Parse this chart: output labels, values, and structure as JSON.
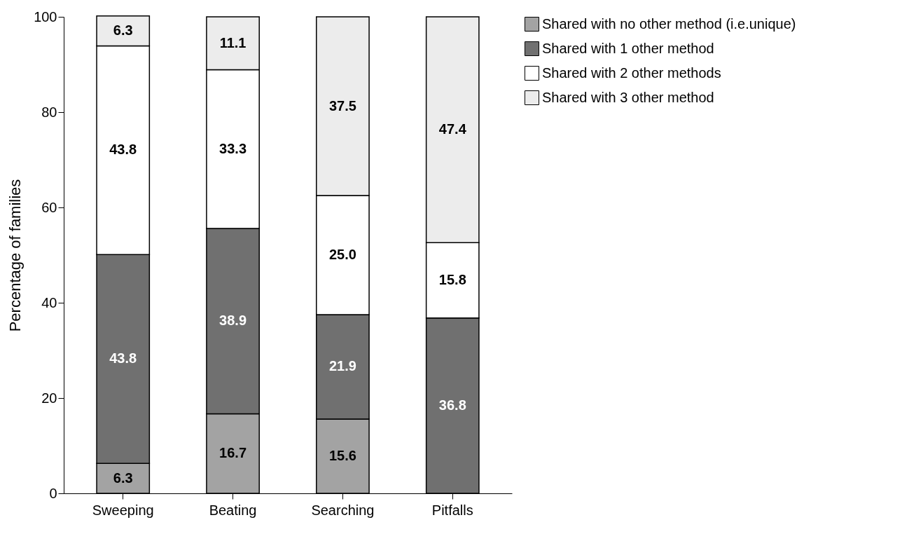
{
  "chart_data": {
    "type": "bar",
    "stacked": true,
    "categories": [
      "Sweeping",
      "Beating",
      "Searching",
      "Pitfalls"
    ],
    "ylabel": "Percentage of families",
    "ylim": [
      0,
      100
    ],
    "yticks": [
      0,
      20,
      40,
      60,
      80,
      100
    ],
    "grid": false,
    "legend": "top right",
    "series": [
      {
        "name": "Shared with no other method (i.e.unique)",
        "color": "#a3a3a3",
        "values": [
          6.3,
          16.7,
          15.6,
          null
        ],
        "value_labels": [
          "6.3",
          "16.7",
          "15.6",
          null
        ]
      },
      {
        "name": "Shared with 1 other method",
        "color": "#707070",
        "values": [
          43.8,
          38.9,
          21.9,
          36.8
        ],
        "value_labels": [
          "43.8",
          "38.9",
          "21.9",
          "36.8"
        ]
      },
      {
        "name": "Shared with 2 other methods",
        "color": "#ffffff",
        "values": [
          43.8,
          33.3,
          25.0,
          15.8
        ],
        "value_labels": [
          "43.8",
          "33.3",
          "25.0",
          "15.8"
        ]
      },
      {
        "name": "Shared with 3 other method",
        "color": "#ececec",
        "values": [
          6.3,
          11.1,
          37.5,
          47.4
        ],
        "value_labels": [
          "6.3",
          "11.1",
          "37.5",
          "47.4"
        ]
      }
    ]
  }
}
